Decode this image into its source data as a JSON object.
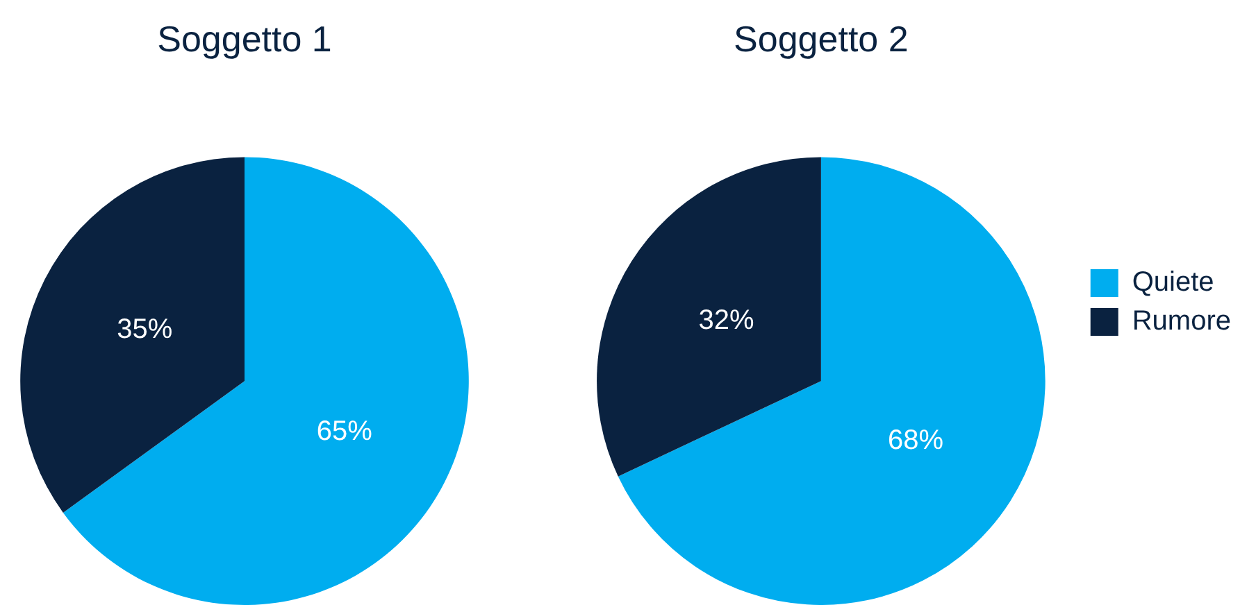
{
  "chart_data": [
    {
      "type": "pie",
      "title": "Soggetto 1",
      "categories": [
        null,
        null
      ],
      "values": [
        65,
        35
      ],
      "colors": [
        "#00adef",
        "#0a2240"
      ],
      "value_labels": [
        "65%",
        "35%"
      ],
      "legend": false
    },
    {
      "type": "pie",
      "title": "Soggetto 2",
      "categories": [
        "Quiete",
        "Rumore"
      ],
      "values": [
        68,
        32
      ],
      "colors": [
        "#00adef",
        "#0a2240"
      ],
      "value_labels": [
        "68%",
        "32%"
      ],
      "legend": "right"
    }
  ]
}
